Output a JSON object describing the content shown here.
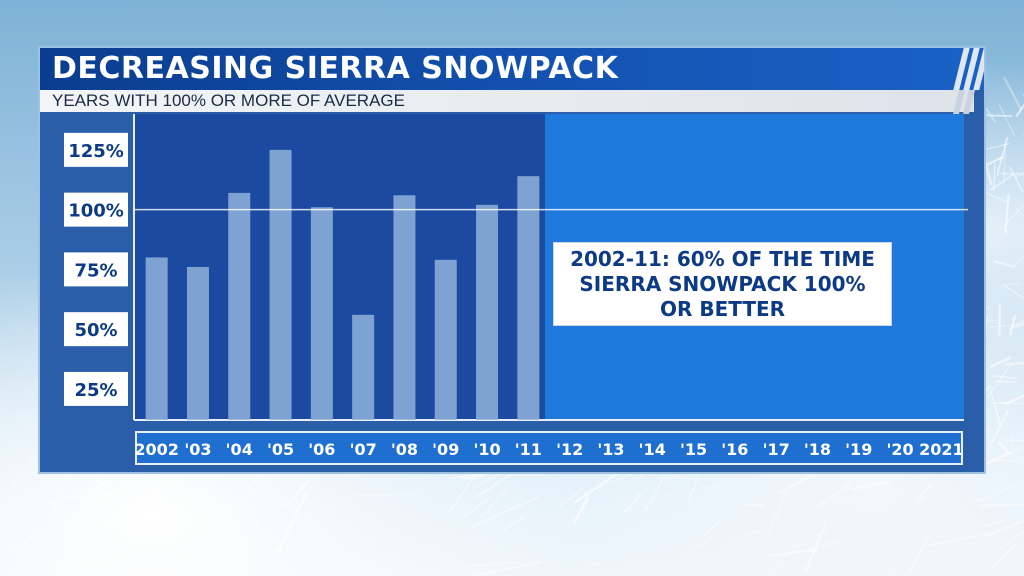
{
  "header": {
    "title": "DECREASING SIERRA SNOWPACK",
    "subtitle": "YEARS WITH 100% OR MORE OF AVERAGE"
  },
  "callout": {
    "lines": [
      "2002-11: 60% OF THE TIME",
      "SIERRA SNOWPACK 100%",
      "OR BETTER"
    ]
  },
  "colors": {
    "bar": "#8fb3dc",
    "plot_shaded": "#1b4aa0",
    "plot_unshaded": "#1f78dc",
    "title_bg": "#0a3d8f",
    "callout_text": "#0d3a84"
  },
  "chart_data": {
    "type": "bar",
    "categories": [
      "2002",
      "'03",
      "'04",
      "'05",
      "'06",
      "'07",
      "'08",
      "'09",
      "'10",
      "'11",
      "'12",
      "'13",
      "'14",
      "'15",
      "'16",
      "'17",
      "'18",
      "'19",
      "'20",
      "2021"
    ],
    "values": [
      80,
      76,
      107,
      125,
      101,
      56,
      106,
      79,
      102,
      114,
      null,
      null,
      null,
      null,
      null,
      null,
      null,
      null,
      null,
      null
    ],
    "title": "DECREASING SIERRA SNOWPACK",
    "subtitle": "YEARS WITH 100% OR MORE OF AVERAGE",
    "xlabel": "",
    "ylabel": "",
    "yticks": [
      "25%",
      "50%",
      "75%",
      "100%",
      "125%"
    ],
    "ytick_values": [
      25,
      50,
      75,
      100,
      125
    ],
    "ylim": [
      12,
      140
    ],
    "reference_line": 100,
    "shaded_range": [
      "2002",
      "'11"
    ],
    "annotation": "2002-11: 60% OF THE TIME SIERRA SNOWPACK 100% OR BETTER",
    "grid": false,
    "legend": "none"
  }
}
